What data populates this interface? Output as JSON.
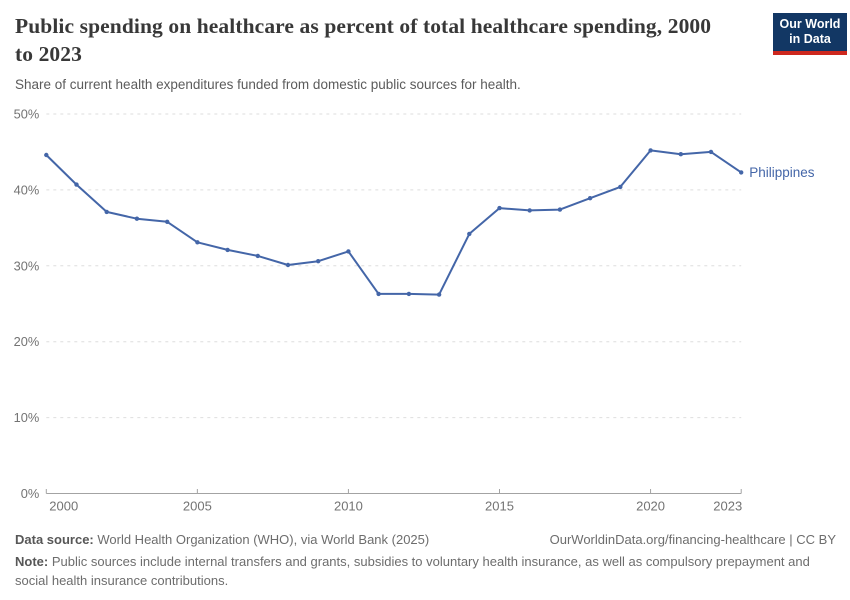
{
  "header": {
    "title": "Public spending on healthcare as percent of total healthcare spending, 2000 to 2023",
    "subtitle": "Share of current health expenditures funded from domestic public sources for health."
  },
  "logo": {
    "line1": "Our World",
    "line2": "in Data",
    "bg_color": "#123764",
    "accent_color": "#cd281e"
  },
  "chart_data": {
    "type": "line",
    "title": "Public spending on healthcare as percent of total healthcare spending, 2000 to 2023",
    "xlabel": "",
    "ylabel": "",
    "xlim": [
      2000,
      2023
    ],
    "ylim": [
      0,
      50
    ],
    "xticks": [
      2000,
      2005,
      2010,
      2015,
      2020,
      2023
    ],
    "yticks": [
      0,
      10,
      20,
      30,
      40,
      50
    ],
    "ytick_suffix": "%",
    "grid": "horizontal-dashed",
    "legend": "end-of-line-label",
    "colors": {
      "line": "#4466a8",
      "grid": "#dedede",
      "axis_text": "#737373",
      "axis_line": "#a3a3a3"
    },
    "x": [
      2000,
      2001,
      2002,
      2003,
      2004,
      2005,
      2006,
      2007,
      2008,
      2009,
      2010,
      2011,
      2012,
      2013,
      2014,
      2015,
      2016,
      2017,
      2018,
      2019,
      2020,
      2021,
      2022,
      2023
    ],
    "series": [
      {
        "name": "Philippines",
        "color": "#4466a8",
        "values": [
          44.6,
          40.7,
          37.1,
          36.2,
          35.8,
          33.1,
          32.1,
          31.3,
          30.1,
          30.6,
          31.9,
          26.3,
          26.3,
          26.2,
          34.2,
          37.6,
          37.3,
          37.4,
          38.9,
          40.4,
          45.2,
          44.7,
          45.0,
          42.3
        ]
      }
    ]
  },
  "footer": {
    "data_source_label": "Data source:",
    "data_source_text": " World Health Organization (WHO), via World Bank (2025)",
    "link_text": "OurWorldinData.org/financing-healthcare | CC BY",
    "note_label": "Note:",
    "note_text": " Public sources include internal transfers and grants, subsidies to voluntary health insurance, as well as compulsory prepayment and social health insurance contributions."
  }
}
